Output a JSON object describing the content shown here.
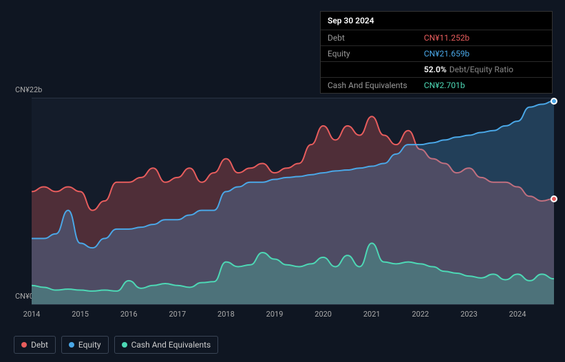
{
  "tooltip": {
    "date": "Sep 30 2024",
    "rows": [
      {
        "label": "Debt",
        "value": "CN¥11.252b",
        "cls": "debt"
      },
      {
        "label": "Equity",
        "value": "CN¥21.659b",
        "cls": "equity"
      },
      {
        "label": "",
        "value_strong": "52.0%",
        "value_rest": "Debt/Equity Ratio",
        "cls": "ratio"
      },
      {
        "label": "Cash And Equivalents",
        "value": "CN¥2.701b",
        "cls": "cash"
      }
    ]
  },
  "chart": {
    "type": "area",
    "background_color": "#141c2a",
    "page_background": "#0f1622",
    "grid_color": "#2a3444",
    "y_labels": [
      "CN¥22b",
      "CN¥0"
    ],
    "ylim": [
      0,
      22
    ],
    "x_ticks": [
      "2014",
      "2015",
      "2016",
      "2017",
      "2018",
      "2019",
      "2020",
      "2021",
      "2022",
      "2023",
      "2024"
    ],
    "x_range": [
      2014,
      2024.75
    ],
    "series": {
      "debt": {
        "label": "Debt",
        "color": "#e85d5d",
        "fill": "rgba(232,93,93,0.28)",
        "line_width": 2,
        "data": [
          [
            2014,
            12
          ],
          [
            2014.25,
            12.5
          ],
          [
            2014.5,
            12
          ],
          [
            2014.75,
            12.5
          ],
          [
            2015,
            12
          ],
          [
            2015.25,
            10
          ],
          [
            2015.5,
            11
          ],
          [
            2015.75,
            13
          ],
          [
            2016,
            13
          ],
          [
            2016.25,
            13.5
          ],
          [
            2016.5,
            14.5
          ],
          [
            2016.75,
            13
          ],
          [
            2017,
            13.5
          ],
          [
            2017.25,
            14.5
          ],
          [
            2017.5,
            13
          ],
          [
            2017.75,
            14
          ],
          [
            2018,
            15.5
          ],
          [
            2018.25,
            14
          ],
          [
            2018.5,
            14.5
          ],
          [
            2018.75,
            15
          ],
          [
            2019,
            14
          ],
          [
            2019.25,
            14.5
          ],
          [
            2019.5,
            15
          ],
          [
            2019.75,
            17
          ],
          [
            2020,
            19
          ],
          [
            2020.25,
            17.5
          ],
          [
            2020.5,
            19
          ],
          [
            2020.75,
            18
          ],
          [
            2021,
            20
          ],
          [
            2021.25,
            18
          ],
          [
            2021.5,
            17
          ],
          [
            2021.75,
            18.5
          ],
          [
            2022,
            16.5
          ],
          [
            2022.25,
            15.5
          ],
          [
            2022.5,
            15
          ],
          [
            2022.75,
            14
          ],
          [
            2023,
            14.5
          ],
          [
            2023.25,
            13.5
          ],
          [
            2023.5,
            13
          ],
          [
            2023.75,
            13
          ],
          [
            2024,
            12.5
          ],
          [
            2024.25,
            11.5
          ],
          [
            2024.5,
            11
          ],
          [
            2024.75,
            11.252
          ]
        ]
      },
      "equity": {
        "label": "Equity",
        "color": "#4aa8e8",
        "fill": "rgba(74,168,232,0.25)",
        "line_width": 2,
        "data": [
          [
            2014,
            7
          ],
          [
            2014.25,
            7
          ],
          [
            2014.5,
            7.5
          ],
          [
            2014.75,
            10
          ],
          [
            2015,
            6.5
          ],
          [
            2015.25,
            6
          ],
          [
            2015.5,
            7
          ],
          [
            2015.75,
            8
          ],
          [
            2016,
            8
          ],
          [
            2016.25,
            8.2
          ],
          [
            2016.5,
            8.5
          ],
          [
            2016.75,
            9
          ],
          [
            2017,
            9
          ],
          [
            2017.25,
            9.5
          ],
          [
            2017.5,
            10
          ],
          [
            2017.75,
            10
          ],
          [
            2018,
            12
          ],
          [
            2018.25,
            12.5
          ],
          [
            2018.5,
            13
          ],
          [
            2018.75,
            13
          ],
          [
            2019,
            13.3
          ],
          [
            2019.25,
            13.5
          ],
          [
            2019.5,
            13.6
          ],
          [
            2019.75,
            13.8
          ],
          [
            2020,
            14
          ],
          [
            2020.25,
            14.2
          ],
          [
            2020.5,
            14.3
          ],
          [
            2020.75,
            14.5
          ],
          [
            2021,
            14.7
          ],
          [
            2021.25,
            15
          ],
          [
            2021.5,
            16
          ],
          [
            2021.75,
            17
          ],
          [
            2022,
            17
          ],
          [
            2022.25,
            17.2
          ],
          [
            2022.5,
            17.5
          ],
          [
            2022.75,
            17.8
          ],
          [
            2023,
            18
          ],
          [
            2023.25,
            18.3
          ],
          [
            2023.5,
            18.5
          ],
          [
            2023.75,
            19
          ],
          [
            2024,
            19.5
          ],
          [
            2024.25,
            21
          ],
          [
            2024.5,
            21.3
          ],
          [
            2024.75,
            21.659
          ]
        ]
      },
      "cash": {
        "label": "Cash And Equivalents",
        "color": "#4dd8b5",
        "fill": "rgba(77,216,181,0.28)",
        "line_width": 2,
        "data": [
          [
            2014,
            2
          ],
          [
            2014.25,
            1.8
          ],
          [
            2014.5,
            1.5
          ],
          [
            2014.75,
            1.6
          ],
          [
            2015,
            1.5
          ],
          [
            2015.25,
            1.4
          ],
          [
            2015.5,
            1.5
          ],
          [
            2015.75,
            1.4
          ],
          [
            2016,
            2.5
          ],
          [
            2016.25,
            1.7
          ],
          [
            2016.5,
            2
          ],
          [
            2016.75,
            2.2
          ],
          [
            2017,
            2
          ],
          [
            2017.25,
            1.8
          ],
          [
            2017.5,
            2.3
          ],
          [
            2017.75,
            2.4
          ],
          [
            2018,
            4.5
          ],
          [
            2018.25,
            4
          ],
          [
            2018.5,
            4.2
          ],
          [
            2018.75,
            5.5
          ],
          [
            2019,
            4.8
          ],
          [
            2019.25,
            4.2
          ],
          [
            2019.5,
            4
          ],
          [
            2019.75,
            4.3
          ],
          [
            2020,
            5
          ],
          [
            2020.25,
            4
          ],
          [
            2020.5,
            5.2
          ],
          [
            2020.75,
            4
          ],
          [
            2021,
            6.5
          ],
          [
            2021.25,
            4.5
          ],
          [
            2021.5,
            4.3
          ],
          [
            2021.75,
            4.5
          ],
          [
            2022,
            4.3
          ],
          [
            2022.25,
            4
          ],
          [
            2022.5,
            3.5
          ],
          [
            2022.75,
            3.3
          ],
          [
            2023,
            3
          ],
          [
            2023.25,
            2.8
          ],
          [
            2023.5,
            3.2
          ],
          [
            2023.75,
            2.6
          ],
          [
            2024,
            3.2
          ],
          [
            2024.25,
            2.5
          ],
          [
            2024.5,
            3.2
          ],
          [
            2024.75,
            2.701
          ]
        ]
      }
    }
  },
  "legend": [
    {
      "label": "Debt",
      "color": "#e85d5d"
    },
    {
      "label": "Equity",
      "color": "#4aa8e8"
    },
    {
      "label": "Cash And Equivalents",
      "color": "#4dd8b5"
    }
  ]
}
